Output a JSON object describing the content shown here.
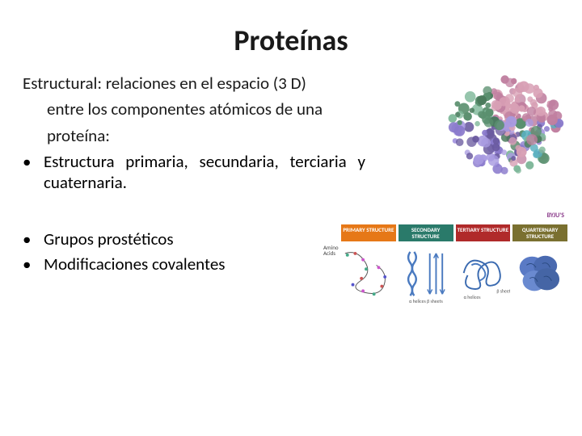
{
  "title": "Proteínas",
  "intro_line1": "Estructural: relaciones en el espacio (3 D)",
  "intro_line2": "entre los componentes atómicos de una",
  "intro_line3": "proteína:",
  "bullet1": "Estructura primaria, secundaria, terciaria y cuaternaria.",
  "bullet2": "Grupos prostéticos",
  "bullet3": "Modificaciones covalentes",
  "watermark": "BYJU'S",
  "amino_label": "Amino Acids",
  "protein3d": {
    "blob_colors": [
      "#7fb89a",
      "#5a8f6e",
      "#4a7a5c",
      "#a89ae0",
      "#8a7acc",
      "#6a5a9f",
      "#d8a0b5",
      "#c080a0",
      "#5ab0c0"
    ],
    "background": "#ffffff"
  },
  "structures": [
    {
      "label": "PRIMARY STRUCTURE",
      "bg": "#e67817",
      "caption": ""
    },
    {
      "label": "SECONDARY STRUCTURE",
      "bg": "#2a7a6a",
      "caption": "α helices   β sheets"
    },
    {
      "label": "TERTIARY STRUCTURE",
      "bg": "#b02a2a",
      "caption": ""
    },
    {
      "label": "QUARTERNARY STRUCTURE",
      "bg": "#7a7030",
      "caption": ""
    }
  ]
}
